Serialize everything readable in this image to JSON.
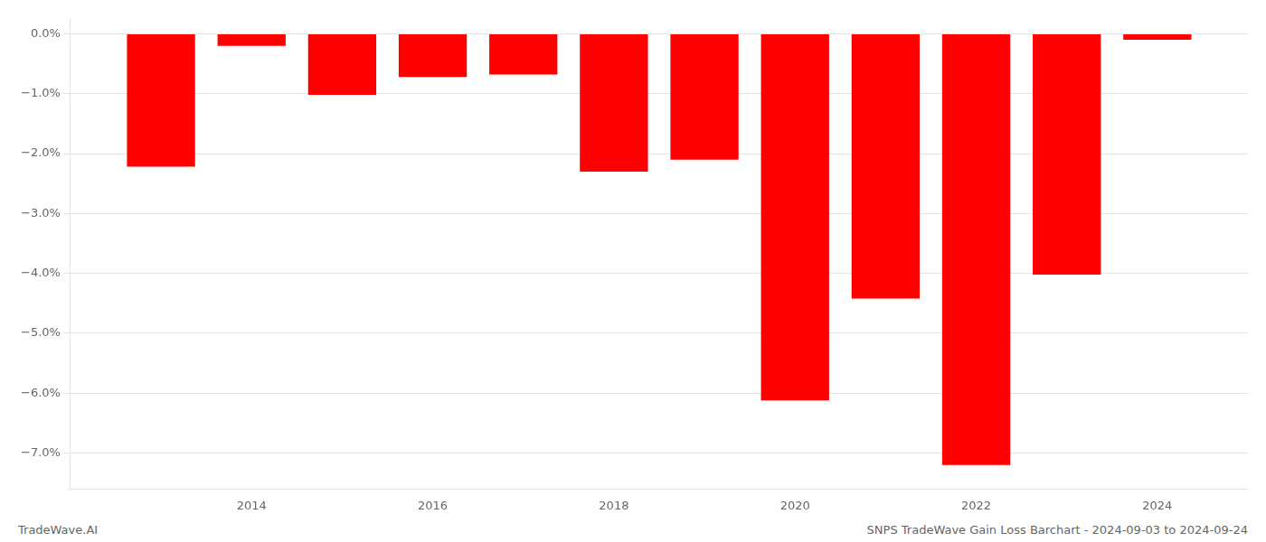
{
  "chart_data": {
    "type": "bar",
    "x": [
      2013,
      2014,
      2015,
      2016,
      2017,
      2018,
      2019,
      2020,
      2021,
      2022,
      2023,
      2024
    ],
    "values": [
      -2.22,
      -0.2,
      -1.02,
      -0.72,
      -0.68,
      -2.3,
      -2.1,
      -6.12,
      -4.42,
      -7.2,
      -4.02,
      -0.1
    ],
    "color": "#ff0000",
    "xlim": [
      2012,
      2025
    ],
    "xticks": [
      2014,
      2016,
      2018,
      2020,
      2022,
      2024
    ],
    "ylim": [
      -7.6,
      0.25
    ],
    "yticks": [
      {
        "value": 0.0,
        "label": "0.0%"
      },
      {
        "value": -1.0,
        "label": "−1.0%"
      },
      {
        "value": -2.0,
        "label": "−2.0%"
      },
      {
        "value": -3.0,
        "label": "−3.0%"
      },
      {
        "value": -4.0,
        "label": "−4.0%"
      },
      {
        "value": -5.0,
        "label": "−5.0%"
      },
      {
        "value": -6.0,
        "label": "−6.0%"
      },
      {
        "value": -7.0,
        "label": "−7.0%"
      }
    ],
    "grid": "y",
    "annotations": [
      "TradeWave.AI",
      "SNPS TradeWave Gain Loss Barchart - 2024-09-03 to 2024-09-24"
    ]
  }
}
